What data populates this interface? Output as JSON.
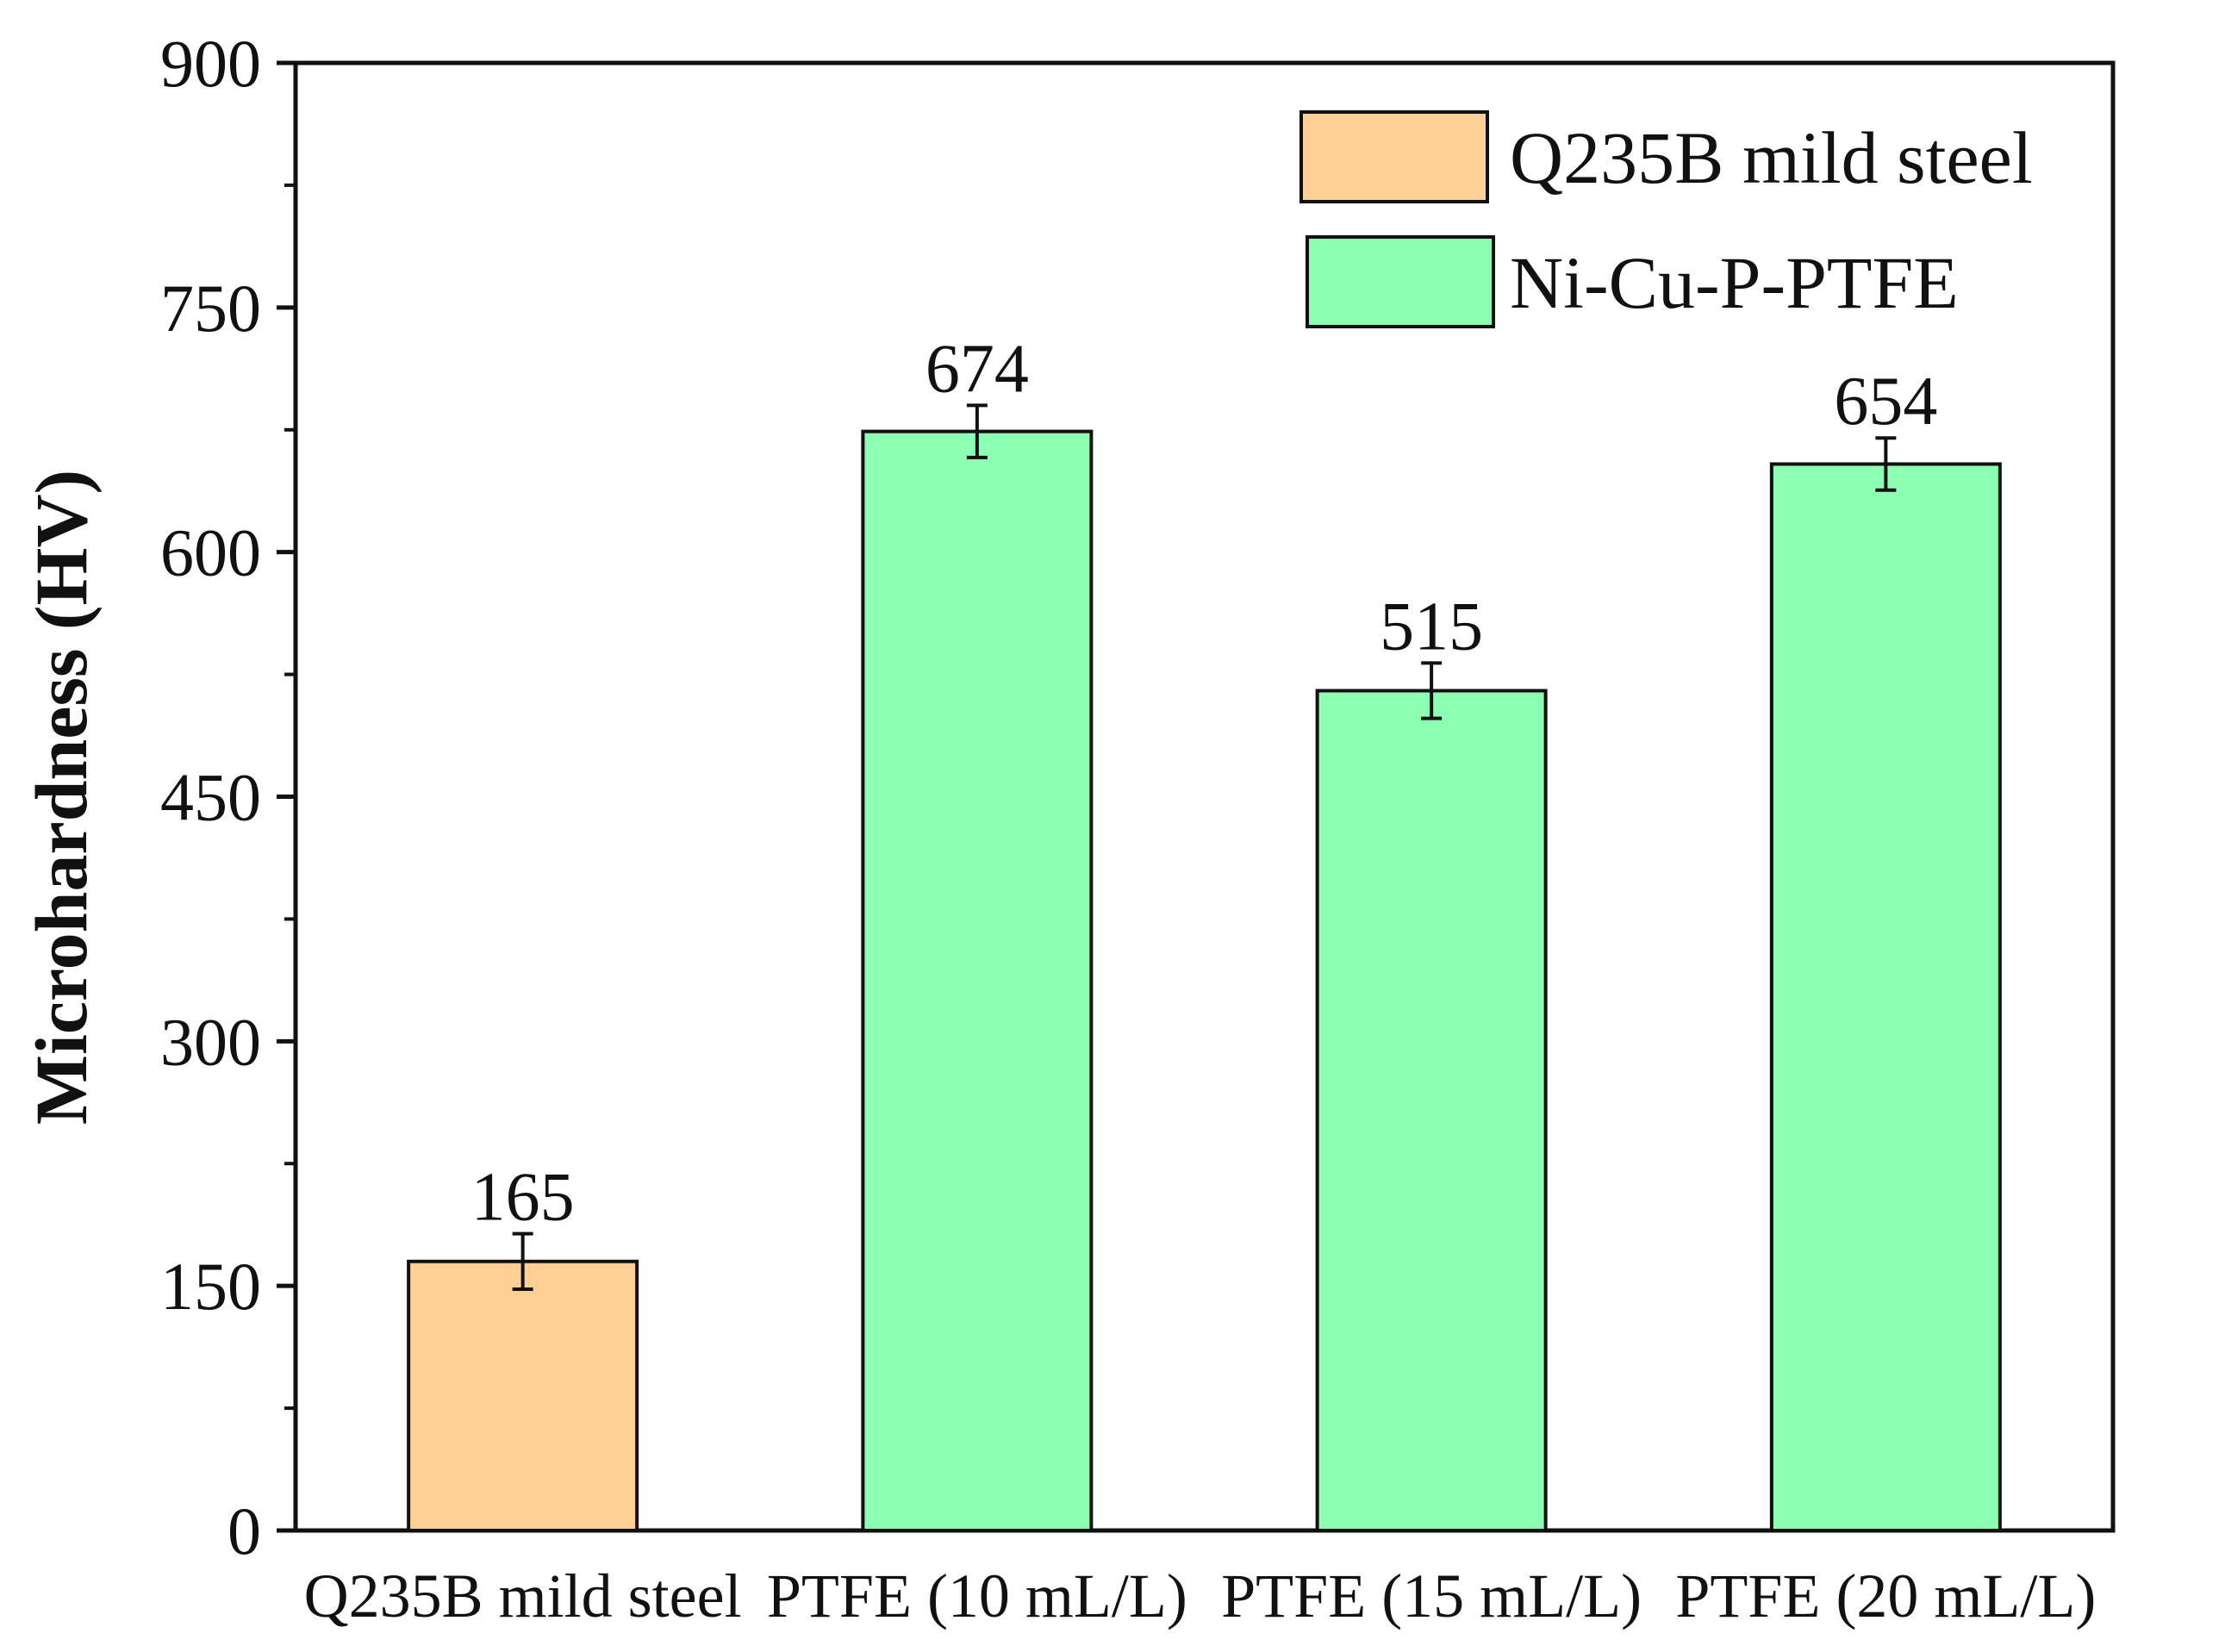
{
  "chart_data": {
    "type": "bar",
    "title": "",
    "xlabel": "",
    "ylabel": "Microhardness (HV)",
    "ylim": [
      0,
      900
    ],
    "yticks": [
      0,
      150,
      300,
      450,
      600,
      750,
      900
    ],
    "categories": [
      "Q235B mild steel",
      "PTFE (10 mL/L)",
      "PTFE (15 mL/L)",
      "PTFE (20 mL/L)"
    ],
    "values": [
      165,
      674,
      515,
      654
    ],
    "errors": [
      17,
      16,
      17,
      16
    ],
    "data_labels": [
      "165",
      "674",
      "515",
      "654"
    ],
    "bar_series": [
      "Q235B mild steel",
      "Ni-Cu-P-PTFE",
      "Ni-Cu-P-PTFE",
      "Ni-Cu-P-PTFE"
    ],
    "legend": {
      "position": "top-right",
      "entries": [
        {
          "label": "Q235B mild steel",
          "color": "#ffcf96"
        },
        {
          "label": "Ni-Cu-P-PTFE",
          "color": "#8cffb2"
        }
      ]
    },
    "grid": false
  }
}
